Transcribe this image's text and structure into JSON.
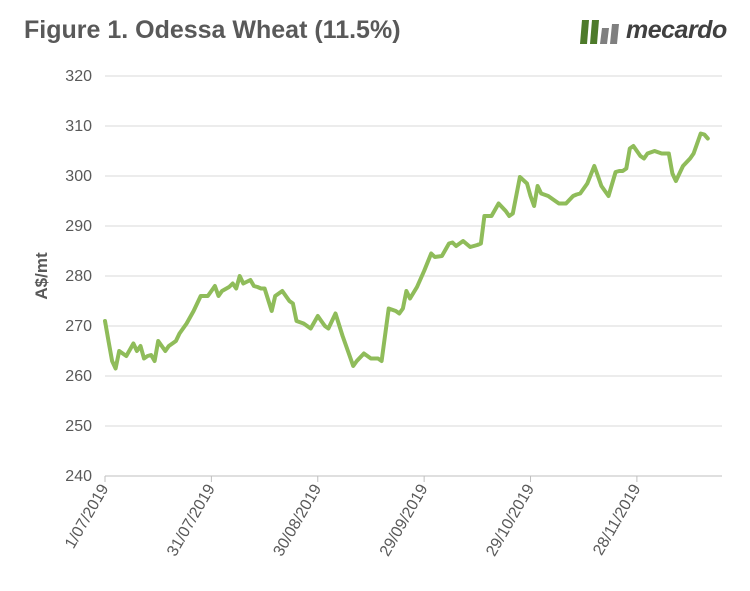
{
  "title": "Figure 1. Odessa Wheat (11.5%)",
  "brand": {
    "name": "mecardo",
    "color": "#4d7a2a"
  },
  "chart_data": {
    "type": "line",
    "title": "Figure 1. Odessa Wheat (11.5%)",
    "xlabel": "",
    "ylabel": "A$/mt",
    "ylim": [
      240,
      320
    ],
    "yticks": [
      240,
      250,
      260,
      270,
      280,
      290,
      300,
      310,
      320
    ],
    "xticks": [
      "1/07/2019",
      "31/07/2019",
      "30/08/2019",
      "29/09/2019",
      "29/10/2019",
      "28/11/2019"
    ],
    "x_start": "1/07/2019",
    "x_end": "22/12/2019",
    "grid": true,
    "line_color": "#8fbc5a",
    "series": [
      {
        "name": "",
        "x": [
          "2019-07-01",
          "2019-07-02",
          "2019-07-03",
          "2019-07-04",
          "2019-07-05",
          "2019-07-06",
          "2019-07-07",
          "2019-07-09",
          "2019-07-10",
          "2019-07-11",
          "2019-07-12",
          "2019-07-13",
          "2019-07-14",
          "2019-07-15",
          "2019-07-16",
          "2019-07-18",
          "2019-07-19",
          "2019-07-20",
          "2019-07-21",
          "2019-07-22",
          "2019-07-24",
          "2019-07-26",
          "2019-07-28",
          "2019-07-30",
          "2019-07-31",
          "2019-08-01",
          "2019-08-02",
          "2019-08-03",
          "2019-08-05",
          "2019-08-06",
          "2019-08-07",
          "2019-08-08",
          "2019-08-09",
          "2019-08-11",
          "2019-08-12",
          "2019-08-13",
          "2019-08-14",
          "2019-08-15",
          "2019-08-17",
          "2019-08-18",
          "2019-08-20",
          "2019-08-22",
          "2019-08-23",
          "2019-08-24",
          "2019-08-26",
          "2019-08-28",
          "2019-08-30",
          "2019-08-31",
          "2019-09-01",
          "2019-09-02",
          "2019-09-04",
          "2019-09-06",
          "2019-09-08",
          "2019-09-09",
          "2019-09-10",
          "2019-09-12",
          "2019-09-14",
          "2019-09-16",
          "2019-09-17",
          "2019-09-19",
          "2019-09-21",
          "2019-09-22",
          "2019-09-23",
          "2019-09-24",
          "2019-09-25",
          "2019-09-27",
          "2019-09-29",
          "2019-10-01",
          "2019-10-02",
          "2019-10-04",
          "2019-10-06",
          "2019-10-07",
          "2019-10-08",
          "2019-10-10",
          "2019-10-12",
          "2019-10-13",
          "2019-10-14",
          "2019-10-15",
          "2019-10-16",
          "2019-10-18",
          "2019-10-20",
          "2019-10-22",
          "2019-10-23",
          "2019-10-24",
          "2019-10-26",
          "2019-10-28",
          "2019-10-29",
          "2019-10-30",
          "2019-10-31",
          "2019-11-01",
          "2019-11-03",
          "2019-11-05",
          "2019-11-06",
          "2019-11-08",
          "2019-11-10",
          "2019-11-11",
          "2019-11-12",
          "2019-11-14",
          "2019-11-16",
          "2019-11-17",
          "2019-11-18",
          "2019-11-20",
          "2019-11-22",
          "2019-11-23",
          "2019-11-24",
          "2019-11-25",
          "2019-11-26",
          "2019-11-27",
          "2019-11-29",
          "2019-11-30",
          "2019-12-01",
          "2019-12-03",
          "2019-12-05",
          "2019-12-07",
          "2019-12-08",
          "2019-12-09",
          "2019-12-11",
          "2019-12-13",
          "2019-12-14",
          "2019-12-16",
          "2019-12-17",
          "2019-12-18"
        ],
        "values": [
          271,
          267,
          263,
          261.5,
          265,
          264.5,
          264,
          266.5,
          265,
          266,
          263.5,
          264,
          264.2,
          263,
          267,
          265,
          266,
          266.5,
          267,
          268.5,
          270.5,
          273,
          276,
          276,
          277,
          278,
          276,
          277,
          277.8,
          278.5,
          277.5,
          280,
          278.5,
          279.2,
          278,
          277.8,
          277.5,
          277.5,
          273,
          276,
          277,
          275,
          274.5,
          271,
          270.5,
          269.5,
          272,
          271,
          270,
          269.5,
          272.5,
          268,
          264,
          262,
          263,
          264.5,
          263.5,
          263.5,
          263,
          273.5,
          273,
          272.5,
          273.5,
          277,
          275.5,
          277.8,
          281,
          284.5,
          283.8,
          284,
          286.5,
          286.7,
          286,
          287,
          285.8,
          286,
          286.2,
          286.5,
          292,
          292,
          294.5,
          293,
          292,
          292.5,
          299.8,
          298.5,
          296,
          294,
          298,
          296.5,
          296,
          295,
          294.5,
          294.5,
          296,
          296.3,
          296.5,
          298.5,
          302,
          300,
          298,
          296,
          300.8,
          301,
          301,
          301.5,
          305.5,
          306,
          304,
          303.5,
          304.5,
          305,
          304.5,
          304.5,
          300.5,
          299,
          302,
          303.5,
          304.5,
          308.5,
          308.3,
          307.5
        ]
      }
    ]
  }
}
